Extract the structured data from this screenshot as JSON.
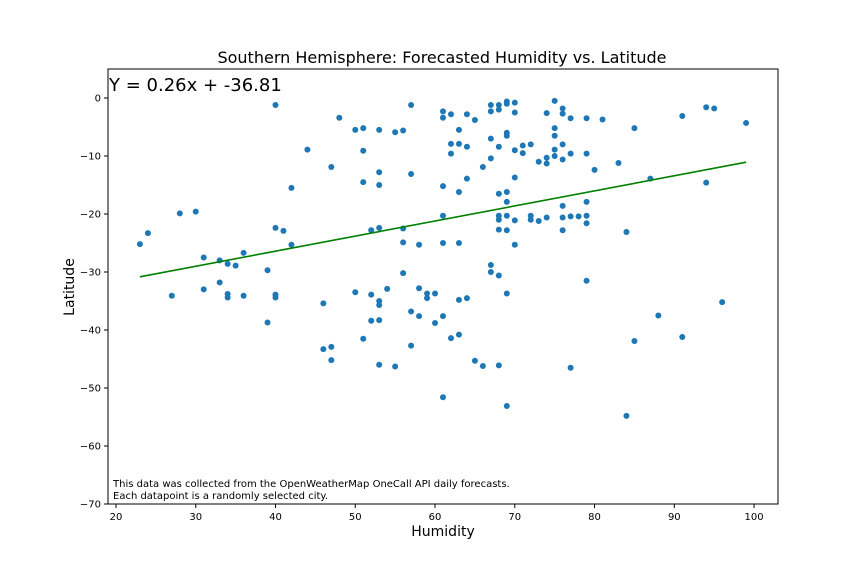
{
  "chart_data": {
    "type": "scatter",
    "title": "Southern Hemisphere: Forecasted Humidity vs. Latitude",
    "xlabel": "Humidity",
    "ylabel": "Latitude",
    "xlim": [
      19,
      103
    ],
    "ylim": [
      -70,
      5
    ],
    "xticks": [
      20,
      30,
      40,
      50,
      60,
      70,
      80,
      90,
      100
    ],
    "yticks": [
      0,
      -10,
      -20,
      -30,
      -40,
      -50,
      -60,
      -70
    ],
    "grid": false,
    "equation": "Y = 0.26x + -36.81",
    "regression": {
      "slope": 0.26,
      "intercept": -36.81,
      "x_start": 23,
      "x_end": 99
    },
    "note_lines": [
      "This data was collected from the OpenWeatherMap OneCall API daily forecasts.",
      "Each datapoint is a randomly selected city."
    ],
    "colors": {
      "points": "#1f77b4",
      "line": "#008000",
      "axes": "#000000"
    },
    "series": [
      {
        "values": [
          [
            23,
            -25.2
          ],
          [
            24,
            -23.3
          ],
          [
            27,
            -34.1
          ],
          [
            28,
            -19.9
          ],
          [
            30,
            -19.6
          ],
          [
            31,
            -27.5
          ],
          [
            31,
            -33.0
          ],
          [
            33,
            -28.0
          ],
          [
            33,
            -31.8
          ],
          [
            34,
            -28.6
          ],
          [
            34,
            -33.8
          ],
          [
            34,
            -34.4
          ],
          [
            35,
            -28.9
          ],
          [
            36,
            -26.7
          ],
          [
            36,
            -34.1
          ],
          [
            39,
            -29.7
          ],
          [
            39,
            -38.7
          ],
          [
            40,
            -1.2
          ],
          [
            40,
            -22.4
          ],
          [
            40,
            -33.9
          ],
          [
            40,
            -34.4
          ],
          [
            41,
            -22.9
          ],
          [
            42,
            -15.5
          ],
          [
            42,
            -25.3
          ],
          [
            44,
            -8.9
          ],
          [
            46,
            -35.4
          ],
          [
            46,
            -43.3
          ],
          [
            47,
            -11.9
          ],
          [
            47,
            -42.9
          ],
          [
            47,
            -45.2
          ],
          [
            48,
            -3.4
          ],
          [
            50,
            -5.5
          ],
          [
            50,
            -33.5
          ],
          [
            51,
            -5.2
          ],
          [
            51,
            -9.1
          ],
          [
            51,
            -14.5
          ],
          [
            51,
            -41.5
          ],
          [
            52,
            -22.8
          ],
          [
            52,
            -33.9
          ],
          [
            52,
            -38.4
          ],
          [
            53,
            -5.5
          ],
          [
            53,
            -12.8
          ],
          [
            53,
            -15.0
          ],
          [
            53,
            -22.4
          ],
          [
            53,
            -35.0
          ],
          [
            53,
            -35.7
          ],
          [
            53,
            -38.3
          ],
          [
            53,
            -46.0
          ],
          [
            54,
            -32.9
          ],
          [
            55,
            -5.9
          ],
          [
            55,
            -46.3
          ],
          [
            56,
            -5.6
          ],
          [
            56,
            -22.5
          ],
          [
            56,
            -24.9
          ],
          [
            56,
            -30.2
          ],
          [
            57,
            -1.2
          ],
          [
            57,
            -13.1
          ],
          [
            57,
            -36.8
          ],
          [
            57,
            -42.7
          ],
          [
            58,
            -25.3
          ],
          [
            58,
            -32.8
          ],
          [
            58,
            -37.6
          ],
          [
            59,
            -33.7
          ],
          [
            59,
            -34.5
          ],
          [
            60,
            -33.7
          ],
          [
            60,
            -38.8
          ],
          [
            61,
            -2.3
          ],
          [
            61,
            -3.4
          ],
          [
            61,
            -15.2
          ],
          [
            61,
            -20.3
          ],
          [
            61,
            -25.0
          ],
          [
            61,
            -37.6
          ],
          [
            61,
            -51.6
          ],
          [
            62,
            -2.8
          ],
          [
            62,
            -7.9
          ],
          [
            62,
            -9.6
          ],
          [
            62,
            -41.4
          ],
          [
            63,
            -5.5
          ],
          [
            63,
            -7.9
          ],
          [
            63,
            -16.2
          ],
          [
            63,
            -25.0
          ],
          [
            63,
            -34.8
          ],
          [
            63,
            -40.8
          ],
          [
            64,
            -2.8
          ],
          [
            64,
            -8.4
          ],
          [
            64,
            -13.9
          ],
          [
            64,
            -34.5
          ],
          [
            65,
            -3.8
          ],
          [
            65,
            -45.3
          ],
          [
            66,
            -11.9
          ],
          [
            66,
            -46.2
          ],
          [
            67,
            -1.2
          ],
          [
            67,
            -2.3
          ],
          [
            67,
            -7.0
          ],
          [
            67,
            -10.4
          ],
          [
            67,
            -28.8
          ],
          [
            67,
            -30.0
          ],
          [
            68,
            -1.2
          ],
          [
            68,
            -2.0
          ],
          [
            68,
            -8.4
          ],
          [
            68,
            -16.5
          ],
          [
            68,
            -20.3
          ],
          [
            68,
            -21.0
          ],
          [
            68,
            -22.7
          ],
          [
            68,
            -30.6
          ],
          [
            68,
            -46.1
          ],
          [
            69,
            -0.6
          ],
          [
            69,
            -1.0
          ],
          [
            69,
            -6.0
          ],
          [
            69,
            -6.5
          ],
          [
            69,
            -16.2
          ],
          [
            69,
            -17.9
          ],
          [
            69,
            -20.3
          ],
          [
            69,
            -22.8
          ],
          [
            69,
            -33.7
          ],
          [
            69,
            -53.1
          ],
          [
            70,
            -0.8
          ],
          [
            70,
            -2.5
          ],
          [
            70,
            -9.0
          ],
          [
            70,
            -13.7
          ],
          [
            70,
            -21.1
          ],
          [
            70,
            -25.3
          ],
          [
            71,
            -8.2
          ],
          [
            71,
            -9.5
          ],
          [
            72,
            -8.0
          ],
          [
            72,
            -20.3
          ],
          [
            72,
            -21.0
          ],
          [
            73,
            -11.0
          ],
          [
            73,
            -21.2
          ],
          [
            74,
            -2.6
          ],
          [
            74,
            -10.3
          ],
          [
            74,
            -11.3
          ],
          [
            74,
            -20.6
          ],
          [
            75,
            -0.5
          ],
          [
            75,
            -5.2
          ],
          [
            75,
            -6.5
          ],
          [
            75,
            -8.9
          ],
          [
            75,
            -10.0
          ],
          [
            76,
            -1.8
          ],
          [
            76,
            -2.7
          ],
          [
            76,
            -8.0
          ],
          [
            76,
            -10.6
          ],
          [
            76,
            -18.6
          ],
          [
            76,
            -20.6
          ],
          [
            76,
            -22.8
          ],
          [
            77,
            -3.5
          ],
          [
            77,
            -9.6
          ],
          [
            77,
            -20.4
          ],
          [
            77,
            -46.5
          ],
          [
            78,
            -20.4
          ],
          [
            79,
            -3.5
          ],
          [
            79,
            -9.6
          ],
          [
            79,
            -17.9
          ],
          [
            79,
            -20.3
          ],
          [
            79,
            -21.6
          ],
          [
            79,
            -31.5
          ],
          [
            80,
            -12.4
          ],
          [
            81,
            -3.7
          ],
          [
            83,
            -11.2
          ],
          [
            84,
            -23.1
          ],
          [
            84,
            -54.8
          ],
          [
            85,
            -5.2
          ],
          [
            85,
            -41.9
          ],
          [
            87,
            -13.9
          ],
          [
            88,
            -37.5
          ],
          [
            91,
            -3.1
          ],
          [
            91,
            -41.2
          ],
          [
            94,
            -1.6
          ],
          [
            94,
            -14.6
          ],
          [
            95,
            -1.8
          ],
          [
            96,
            -35.2
          ],
          [
            99,
            -4.3
          ]
        ]
      }
    ]
  }
}
